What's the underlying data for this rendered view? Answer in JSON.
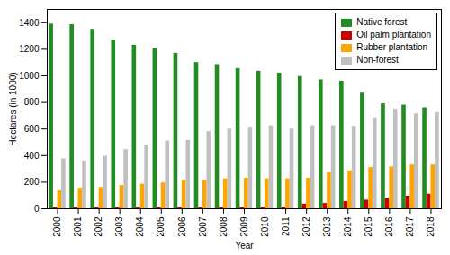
{
  "chart_data": {
    "type": "bar",
    "categories": [
      "2000",
      "2001",
      "2002",
      "2003",
      "2004",
      "2005",
      "2006",
      "2007",
      "2008",
      "2009",
      "2010",
      "2011",
      "2012",
      "2013",
      "2014",
      "2015",
      "2016",
      "2017",
      "2018"
    ],
    "series": [
      {
        "name": "Native forest",
        "color": "#228B22",
        "values": [
          1390,
          1385,
          1350,
          1270,
          1230,
          1205,
          1170,
          1100,
          1085,
          1055,
          1035,
          1020,
          995,
          970,
          960,
          870,
          790,
          780,
          760
        ]
      },
      {
        "name": "Oil palm plantation",
        "color": "#cc0000",
        "values": [
          10,
          10,
          10,
          10,
          10,
          10,
          10,
          10,
          10,
          10,
          10,
          10,
          35,
          40,
          55,
          65,
          75,
          95,
          110
        ]
      },
      {
        "name": "Rubber plantation",
        "color": "#FFA500",
        "values": [
          135,
          155,
          160,
          175,
          185,
          195,
          215,
          215,
          225,
          230,
          225,
          225,
          230,
          270,
          285,
          310,
          315,
          330,
          330
        ]
      },
      {
        "name": "Non-forest",
        "color": "#C0C0C0",
        "values": [
          375,
          360,
          395,
          445,
          480,
          510,
          515,
          580,
          600,
          615,
          625,
          600,
          625,
          625,
          620,
          685,
          750,
          715,
          725
        ]
      }
    ],
    "xlabel": "Year",
    "ylabel": "Hectares (in 1000)",
    "ylim": [
      0,
      1500
    ],
    "yticks": [
      0,
      200,
      400,
      600,
      800,
      1000,
      1200,
      1400
    ],
    "grid": false,
    "legend": "upper right"
  }
}
